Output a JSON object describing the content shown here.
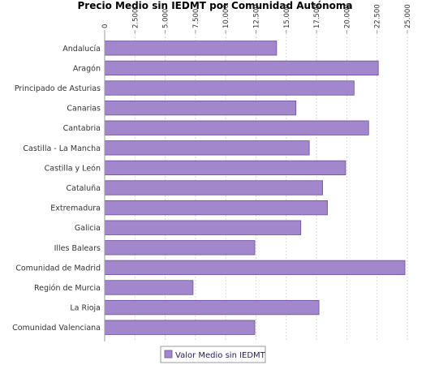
{
  "chart_data": {
    "type": "bar",
    "orientation": "horizontal",
    "title": "Precio Medio sin IEDMT por Comunidad Autónoma",
    "xlim": [
      0,
      25000
    ],
    "ticks": [
      0,
      2500,
      5000,
      7500,
      10000,
      12500,
      15000,
      17500,
      20000,
      22500,
      25000
    ],
    "tick_labels": [
      "0",
      "2.500",
      "5.000",
      "7.500",
      "10.000",
      "12.500",
      "15.000",
      "17.500",
      "20.000",
      "22.500",
      "25.000"
    ],
    "grid": true,
    "legend_position": "bottom",
    "bar_color": "#a387cc",
    "categories": [
      "Andalucía",
      "Aragón",
      "Principado de Asturias",
      "Canarias",
      "Cantabria",
      "Castilla - La Mancha",
      "Castilla y León",
      "Cataluña",
      "Extremadura",
      "Galicia",
      "Illes Balears",
      "Comunidad de Madrid",
      "Región de Murcia",
      "La Rioja",
      "Comunidad Valenciana"
    ],
    "series": [
      {
        "name": "Valor Medio sin IEDMT",
        "values": [
          14200,
          22600,
          20600,
          15800,
          21800,
          16900,
          19900,
          18000,
          18400,
          16200,
          12400,
          24800,
          7300,
          17700,
          12400
        ]
      }
    ]
  }
}
